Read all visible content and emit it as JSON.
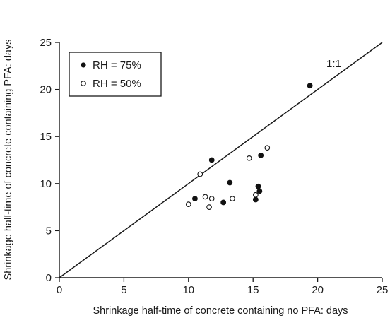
{
  "chart_data": {
    "type": "scatter",
    "xlabel": "Shrinkage half-time of concrete containing no PFA: days",
    "ylabel": "Shrinkage half-time of concrete containing PFA: days",
    "xlim": [
      0,
      25
    ],
    "ylim": [
      0,
      25
    ],
    "xticks": [
      0,
      5,
      10,
      15,
      20,
      25
    ],
    "yticks": [
      0,
      5,
      10,
      15,
      20,
      25
    ],
    "grid": false,
    "legend_position": "top-left",
    "reference_line": {
      "label": "1:1",
      "x": [
        0,
        25
      ],
      "y": [
        0,
        25
      ]
    },
    "series": [
      {
        "name": "RH = 75%",
        "marker": "filled-circle",
        "color": "#111111",
        "x": [
          10.5,
          11.8,
          12.7,
          13.2,
          15.2,
          15.4,
          15.5,
          15.6,
          19.4
        ],
        "y": [
          8.4,
          12.5,
          8.0,
          10.1,
          8.3,
          9.7,
          9.2,
          13.0,
          20.4
        ]
      },
      {
        "name": "RH = 50%",
        "marker": "open-circle",
        "color": "#111111",
        "x": [
          10.0,
          10.9,
          11.3,
          11.6,
          11.8,
          13.4,
          14.7,
          15.2,
          16.1
        ],
        "y": [
          7.8,
          11.0,
          8.6,
          7.5,
          8.4,
          8.4,
          12.7,
          8.8,
          13.8
        ]
      }
    ]
  }
}
